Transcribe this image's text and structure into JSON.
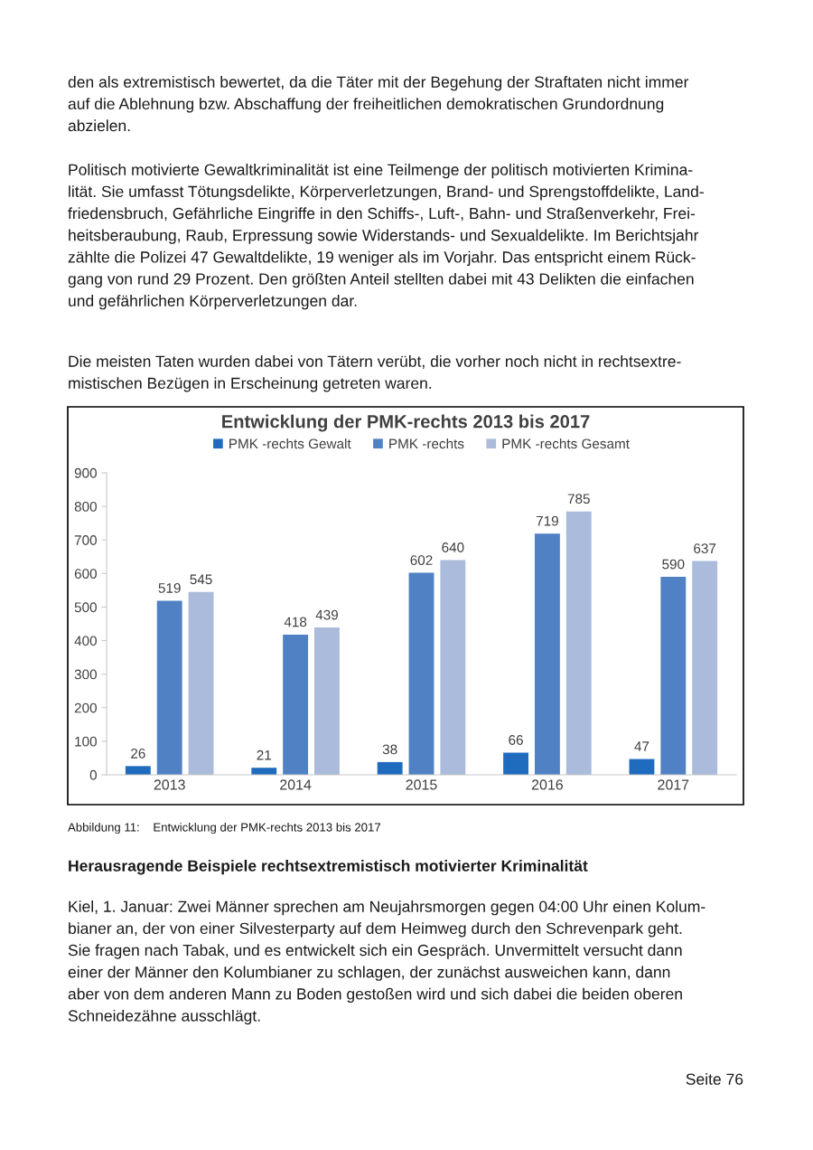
{
  "chart_data": {
    "type": "bar",
    "title": "Entwicklung der PMK-rechts 2013 bis 2017",
    "categories": [
      "2013",
      "2014",
      "2015",
      "2016",
      "2017"
    ],
    "series": [
      {
        "name": "PMK -rechts Gewalt",
        "color": "#1f6cbf",
        "values": [
          26,
          21,
          38,
          66,
          47
        ]
      },
      {
        "name": "PMK -rechts",
        "color": "#4f81c4",
        "values": [
          519,
          418,
          602,
          719,
          590
        ]
      },
      {
        "name": "PMK -rechts Gesamt",
        "color": "#aabbdb",
        "values": [
          545,
          439,
          640,
          785,
          637
        ]
      }
    ],
    "ylim": [
      0,
      900
    ],
    "yticks": [
      0,
      100,
      200,
      300,
      400,
      500,
      600,
      700,
      800,
      900
    ],
    "grid": false,
    "legend": "top",
    "data_labels": true,
    "annotations": [
      "den als extremistisch bewertet, da die Täter mit der Begehung der Straftaten nicht immer\nauf die Ablehnung bzw. Abschaffung der freiheitlichen demokratischen Grundordnung\nabzielen.",
      "Politisch motivierte Gewaltkriminalität ist eine Teilmenge der politisch motivierten Krimina-\nlität. Sie umfasst Tötungsdelikte, Körperverletzungen, Brand- und Sprengstoffdelikte, Land-\nfriedensbruch, Gefährliche Eingriffe in den Schiffs-, Luft-, Bahn- und Straßenverkehr, Frei-\nheitsberaubung, Raub, Erpressung sowie Widerstands- und Sexualdelikte. Im Berichtsjahr\nzählte die Polizei 47 Gewaltdelikte, 19 weniger als im Vorjahr. Das entspricht einem Rück-\ngang von rund 29 Prozent. Den größten Anteil stellten dabei mit 43 Delikten die einfachen\nund gefährlichen Körperverletzungen dar.",
      "Die meisten Taten wurden dabei von Tätern verübt, die vorher noch nicht in rechtsextre-\nmistischen Bezügen in Erscheinung getreten waren.",
      "Abbildung 11:    Entwicklung der PMK-rechts 2013 bis 2017",
      "Herausragende Beispiele rechtsextremistisch motivierter Kriminalität",
      "Kiel, 1. Januar: Zwei Männer sprechen am Neujahrsmorgen gegen 04:00 Uhr einen Kolum-\nbianer an, der von einer Silvesterparty auf dem Heimweg durch den Schrevenpark geht.\nSie fragen nach Tabak, und es entwickelt sich ein Gespräch. Unvermittelt versucht dann\neiner der Männer den Kolumbianer zu schlagen, der zunächst ausweichen kann, dann\naber von dem anderen Mann zu Boden gestoßen wird und sich dabei die beiden oberen\nSchneidezähne ausschlägt.",
      "Seite 76"
    ]
  }
}
